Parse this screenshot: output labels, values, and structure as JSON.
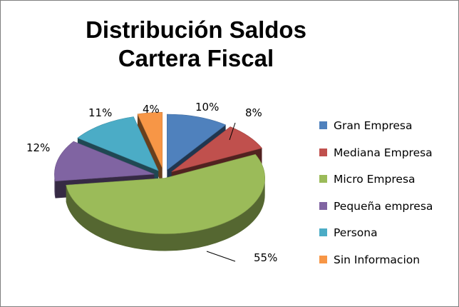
{
  "chart_data": {
    "type": "pie",
    "title_line1": "Distribución Saldos",
    "title_line2": "Cartera Fiscal",
    "slices": [
      {
        "name": "Gran Empresa",
        "value": 10,
        "label": "10%",
        "color": "#4f81bd"
      },
      {
        "name": "Mediana Empresa",
        "value": 8,
        "label": "8%",
        "color": "#c0504d"
      },
      {
        "name": "Micro Empresa",
        "value": 55,
        "label": "55%",
        "color": "#9bbb59"
      },
      {
        "name": "Pequeña empresa",
        "value": 12,
        "label": "12%",
        "color": "#8064a2"
      },
      {
        "name": "Persona",
        "value": 11,
        "label": "11%",
        "color": "#4bacc6"
      },
      {
        "name": "Sin Informacion",
        "value": 4,
        "label": "4%",
        "color": "#f79646"
      }
    ],
    "legend_position": "right",
    "style": "3d-exploded"
  }
}
